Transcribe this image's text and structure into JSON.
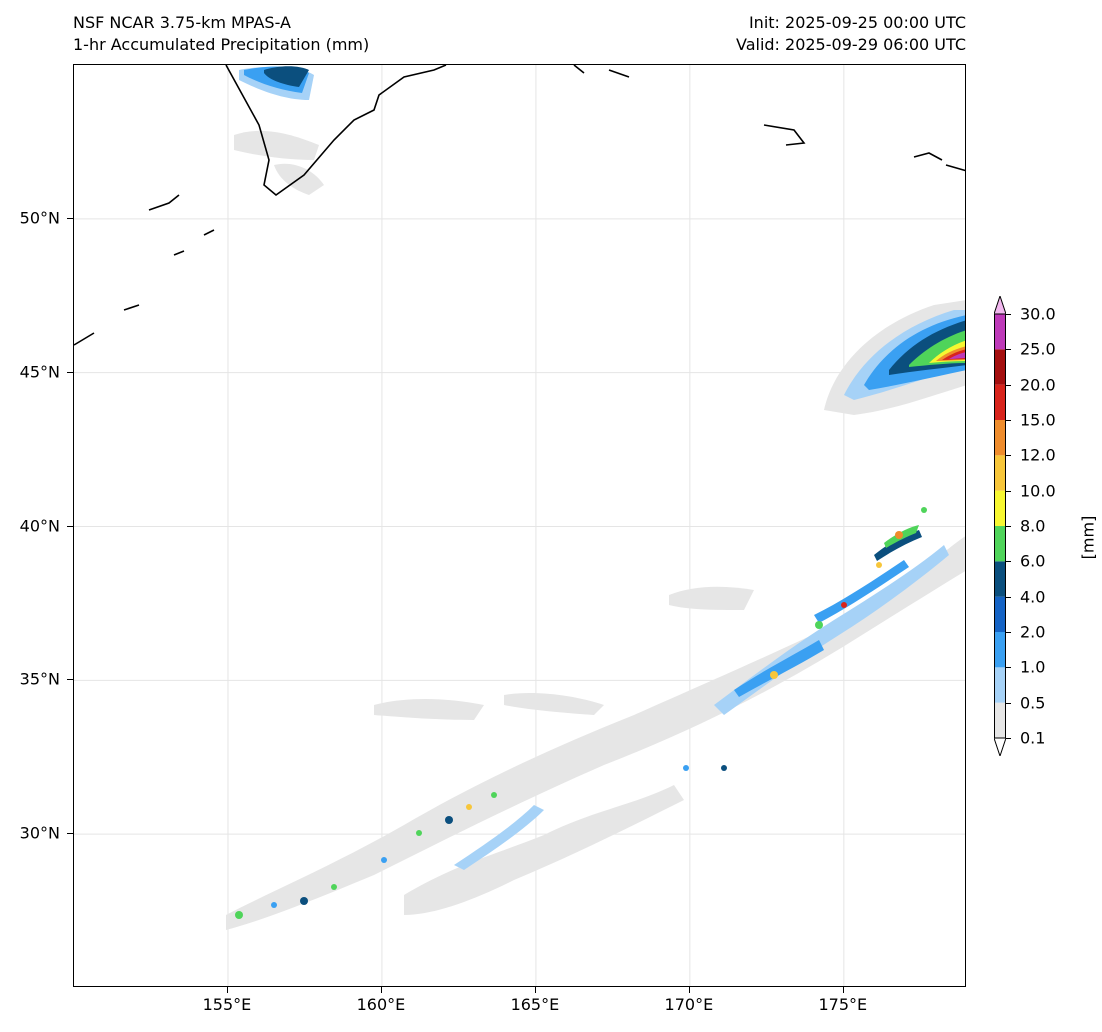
{
  "header": {
    "model": "NSF NCAR 3.75-km MPAS-A",
    "field": "1-hr Accumulated Precipitation (mm)",
    "init": "Init: 2025-09-25 00:00 UTC",
    "valid": "Valid: 2025-09-29 06:00 UTC"
  },
  "axes": {
    "lat_labels": [
      "30°N",
      "35°N",
      "40°N",
      "45°N",
      "50°N"
    ],
    "lon_labels": [
      "155°E",
      "160°E",
      "165°E",
      "170°E",
      "175°E"
    ]
  },
  "colorbar": {
    "unit": "[mm]",
    "levels": [
      "0.1",
      "0.5",
      "1.0",
      "2.0",
      "4.0",
      "6.0",
      "8.0",
      "10.0",
      "12.0",
      "15.0",
      "20.0",
      "25.0",
      "30.0"
    ],
    "colors": [
      "#e6e6e6",
      "#a6d2f7",
      "#3aa0f2",
      "#1463c5",
      "#0b4f7e",
      "#4fd45a",
      "#f7f731",
      "#f7c63a",
      "#ef8c2c",
      "#d8241c",
      "#a40f0f",
      "#be3ab9",
      "#f2b8ef"
    ]
  },
  "map": {
    "lon_range": [
      150,
      179
    ],
    "lat_range": [
      25,
      55
    ],
    "gridlines": true
  }
}
